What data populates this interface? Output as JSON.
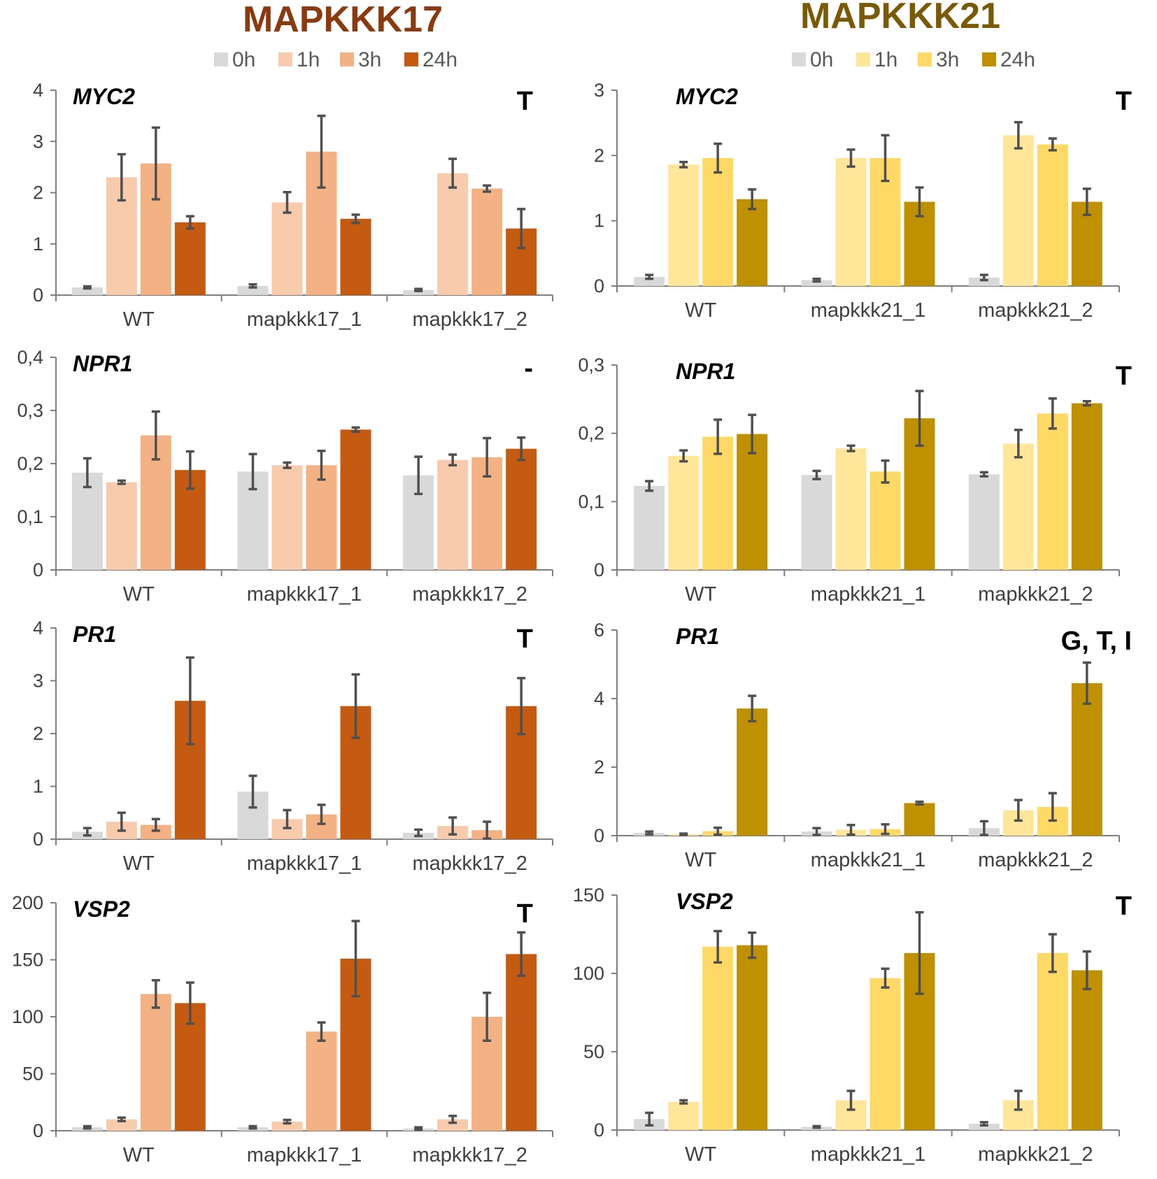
{
  "figure": {
    "columns": [
      {
        "title": "MAPKKK17",
        "title_color": "#8b3a10"
      },
      {
        "title": "MAPKKK21",
        "title_color": "#7a5a05"
      }
    ],
    "legends": [
      {
        "items": [
          {
            "label": "0h",
            "color": "#d9d9d9"
          },
          {
            "label": "1h",
            "color": "#f8cbad"
          },
          {
            "label": "3h",
            "color": "#f4b183"
          },
          {
            "label": "24h",
            "color": "#c55a11"
          }
        ]
      },
      {
        "items": [
          {
            "label": "0h",
            "color": "#d9d9d9"
          },
          {
            "label": "1h",
            "color": "#ffe699"
          },
          {
            "label": "3h",
            "color": "#ffd966"
          },
          {
            "label": "24h",
            "color": "#bf9000"
          }
        ]
      }
    ]
  },
  "chart_data": [
    {
      "id": "myc2-17",
      "type": "bar",
      "col": 0,
      "row": 0,
      "gene": "MYC2",
      "significance": "T",
      "categories": [
        "WT",
        "mapkkk17_1",
        "mapkkk17_2"
      ],
      "ylim": [
        0,
        4
      ],
      "yticks": [
        "0",
        "1",
        "2",
        "3",
        "4"
      ],
      "series": [
        {
          "name": "0h",
          "values": [
            0.15,
            0.18,
            0.1
          ],
          "errors": [
            0.02,
            0.03,
            0.02
          ]
        },
        {
          "name": "1h",
          "values": [
            2.3,
            1.81,
            2.38
          ],
          "errors": [
            0.45,
            0.2,
            0.28
          ]
        },
        {
          "name": "3h",
          "values": [
            2.57,
            2.8,
            2.08
          ],
          "errors": [
            0.7,
            0.7,
            0.06
          ]
        },
        {
          "name": "24h",
          "values": [
            1.42,
            1.49,
            1.3
          ],
          "errors": [
            0.12,
            0.08,
            0.38
          ]
        }
      ]
    },
    {
      "id": "npr1-17",
      "type": "bar",
      "col": 0,
      "row": 1,
      "gene": "NPR1",
      "significance": "-",
      "categories": [
        "WT",
        "mapkkk17_1",
        "mapkkk17_2"
      ],
      "ylim": [
        0,
        0.4
      ],
      "yticks": [
        "0",
        "0,1",
        "0,2",
        "0,3",
        "0,4"
      ],
      "series": [
        {
          "name": "0h",
          "values": [
            0.183,
            0.185,
            0.178
          ],
          "errors": [
            0.027,
            0.033,
            0.035
          ]
        },
        {
          "name": "1h",
          "values": [
            0.165,
            0.197,
            0.207
          ],
          "errors": [
            0.003,
            0.005,
            0.01
          ]
        },
        {
          "name": "3h",
          "values": [
            0.253,
            0.197,
            0.212
          ],
          "errors": [
            0.045,
            0.027,
            0.036
          ]
        },
        {
          "name": "24h",
          "values": [
            0.188,
            0.264,
            0.228
          ],
          "errors": [
            0.035,
            0.004,
            0.021
          ]
        }
      ]
    },
    {
      "id": "pr1-17",
      "type": "bar",
      "col": 0,
      "row": 2,
      "gene": "PR1",
      "significance": "T",
      "categories": [
        "WT",
        "mapkkk17_1",
        "mapkkk17_2"
      ],
      "ylim": [
        0,
        4
      ],
      "yticks": [
        "0",
        "1",
        "2",
        "3",
        "4"
      ],
      "series": [
        {
          "name": "0h",
          "values": [
            0.14,
            0.9,
            0.12
          ],
          "errors": [
            0.07,
            0.3,
            0.06
          ]
        },
        {
          "name": "1h",
          "values": [
            0.33,
            0.38,
            0.25
          ],
          "errors": [
            0.17,
            0.17,
            0.16
          ]
        },
        {
          "name": "3h",
          "values": [
            0.27,
            0.47,
            0.17
          ],
          "errors": [
            0.11,
            0.18,
            0.16
          ]
        },
        {
          "name": "24h",
          "values": [
            2.62,
            2.52,
            2.52
          ],
          "errors": [
            0.82,
            0.6,
            0.53
          ]
        }
      ]
    },
    {
      "id": "vsp2-17",
      "type": "bar",
      "col": 0,
      "row": 3,
      "gene": "VSP2",
      "significance": "T",
      "categories": [
        "WT",
        "mapkkk17_1",
        "mapkkk17_2"
      ],
      "ylim": [
        0,
        200
      ],
      "yticks": [
        "0",
        "50",
        "100",
        "150",
        "200"
      ],
      "series": [
        {
          "name": "0h",
          "values": [
            3,
            3,
            2
          ],
          "errors": [
            1,
            1,
            1
          ]
        },
        {
          "name": "1h",
          "values": [
            10,
            8,
            10
          ],
          "errors": [
            1.5,
            1.5,
            3
          ]
        },
        {
          "name": "3h",
          "values": [
            120,
            87,
            100
          ],
          "errors": [
            12,
            8,
            21
          ]
        },
        {
          "name": "24h",
          "values": [
            112,
            151,
            155
          ],
          "errors": [
            18,
            33,
            19
          ]
        }
      ]
    },
    {
      "id": "myc2-21",
      "type": "bar",
      "col": 1,
      "row": 0,
      "gene": "MYC2",
      "significance": "T",
      "categories": [
        "WT",
        "mapkkk21_1",
        "mapkkk21_2"
      ],
      "ylim": [
        0,
        3
      ],
      "yticks": [
        "0",
        "1",
        "2",
        "3"
      ],
      "series": [
        {
          "name": "0h",
          "values": [
            0.14,
            0.09,
            0.13
          ],
          "errors": [
            0.03,
            0.02,
            0.04
          ]
        },
        {
          "name": "1h",
          "values": [
            1.86,
            1.96,
            2.31
          ],
          "errors": [
            0.04,
            0.13,
            0.2
          ]
        },
        {
          "name": "3h",
          "values": [
            1.96,
            1.96,
            2.17
          ],
          "errors": [
            0.22,
            0.35,
            0.09
          ]
        },
        {
          "name": "24h",
          "values": [
            1.33,
            1.29,
            1.29
          ],
          "errors": [
            0.15,
            0.22,
            0.2
          ]
        }
      ]
    },
    {
      "id": "npr1-21",
      "type": "bar",
      "col": 1,
      "row": 1,
      "gene": "NPR1",
      "significance": "T",
      "categories": [
        "WT",
        "mapkkk21_1",
        "mapkkk21_2"
      ],
      "ylim": [
        0,
        0.3
      ],
      "yticks": [
        "0",
        "0,1",
        "0,2",
        "0,3"
      ],
      "series": [
        {
          "name": "0h",
          "values": [
            0.123,
            0.139,
            0.14
          ],
          "errors": [
            0.007,
            0.006,
            0.003
          ]
        },
        {
          "name": "1h",
          "values": [
            0.167,
            0.178,
            0.185
          ],
          "errors": [
            0.008,
            0.004,
            0.02
          ]
        },
        {
          "name": "3h",
          "values": [
            0.195,
            0.144,
            0.229
          ],
          "errors": [
            0.025,
            0.016,
            0.022
          ]
        },
        {
          "name": "24h",
          "values": [
            0.199,
            0.222,
            0.244
          ],
          "errors": [
            0.028,
            0.04,
            0.003
          ]
        }
      ]
    },
    {
      "id": "pr1-21",
      "type": "bar",
      "col": 1,
      "row": 2,
      "gene": "PR1",
      "significance": "G, T, I",
      "categories": [
        "WT",
        "mapkkk21_1",
        "mapkkk21_2"
      ],
      "ylim": [
        0,
        6
      ],
      "yticks": [
        "0",
        "2",
        "4",
        "6"
      ],
      "series": [
        {
          "name": "0h",
          "values": [
            0.08,
            0.12,
            0.22
          ],
          "errors": [
            0.04,
            0.1,
            0.2
          ]
        },
        {
          "name": "1h",
          "values": [
            0.04,
            0.17,
            0.74
          ],
          "errors": [
            0.02,
            0.14,
            0.3
          ]
        },
        {
          "name": "3h",
          "values": [
            0.13,
            0.19,
            0.84
          ],
          "errors": [
            0.1,
            0.14,
            0.4
          ]
        },
        {
          "name": "24h",
          "values": [
            3.71,
            0.95,
            4.45
          ],
          "errors": [
            0.37,
            0.04,
            0.6
          ]
        }
      ]
    },
    {
      "id": "vsp2-21",
      "type": "bar",
      "col": 1,
      "row": 3,
      "gene": "VSP2",
      "significance": "T",
      "categories": [
        "WT",
        "mapkkk21_1",
        "mapkkk21_2"
      ],
      "ylim": [
        0,
        150
      ],
      "yticks": [
        "0",
        "50",
        "100",
        "150"
      ],
      "series": [
        {
          "name": "0h",
          "values": [
            7,
            2,
            4
          ],
          "errors": [
            4,
            0.5,
            1
          ]
        },
        {
          "name": "1h",
          "values": [
            18,
            19,
            19
          ],
          "errors": [
            1,
            6,
            6
          ]
        },
        {
          "name": "3h",
          "values": [
            117,
            97,
            113
          ],
          "errors": [
            10,
            6,
            12
          ]
        },
        {
          "name": "24h",
          "values": [
            118,
            113,
            102
          ],
          "errors": [
            8,
            26,
            12
          ]
        }
      ]
    }
  ]
}
